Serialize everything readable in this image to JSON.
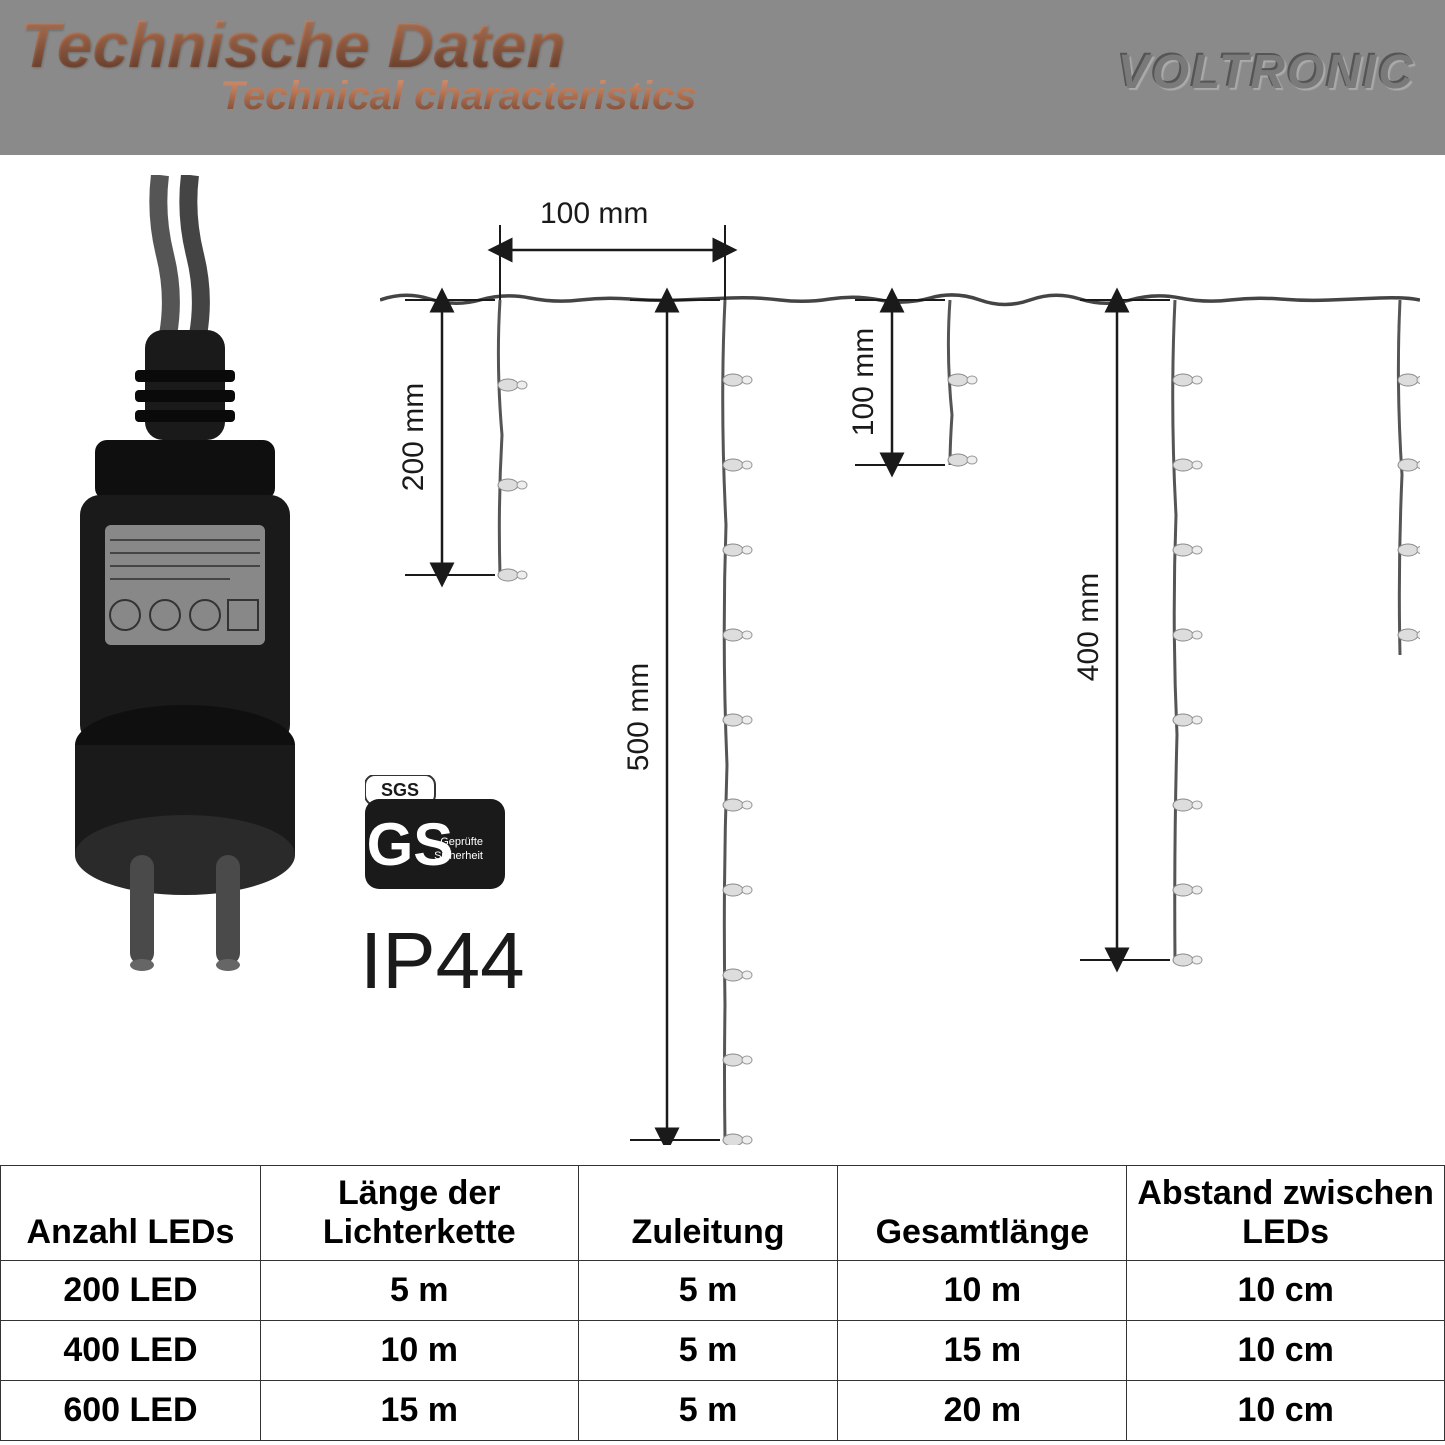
{
  "header": {
    "title_main": "Technische Daten",
    "title_sub": "Technical characteristics",
    "brand": "VOLTRONIC",
    "bg_color": "#8a8a8a",
    "title_gradient_top": "#d4967a",
    "title_gradient_bottom": "#6b4030"
  },
  "diagram": {
    "ip_rating": "IP44",
    "cert_sgs": "SGS",
    "cert_gs": "GS",
    "cert_sub": "Geprüfte Sicherheit",
    "dimensions": {
      "spacing_top": "100 mm",
      "strand_200": "200 mm",
      "strand_500": "500 mm",
      "strand_100": "100 mm",
      "strand_400": "400 mm"
    },
    "colors": {
      "wire": "#333333",
      "arrow": "#1a1a1a",
      "plug_body": "#1a1a1a",
      "plug_prong": "#4a4a4a"
    }
  },
  "table": {
    "columns": [
      "Anzahl LEDs",
      "Länge der Lichterkette",
      "Zuleitung",
      "Gesamtlänge",
      "Abstand zwischen LEDs"
    ],
    "rows": [
      [
        "200 LED",
        "5 m",
        "5 m",
        "10 m",
        "10 cm"
      ],
      [
        "400 LED",
        "10 m",
        "5 m",
        "15 m",
        "10 cm"
      ],
      [
        "600 LED",
        "15 m",
        "5 m",
        "20 m",
        "10 cm"
      ]
    ],
    "widths_pct": [
      18,
      22,
      18,
      20,
      22
    ]
  }
}
